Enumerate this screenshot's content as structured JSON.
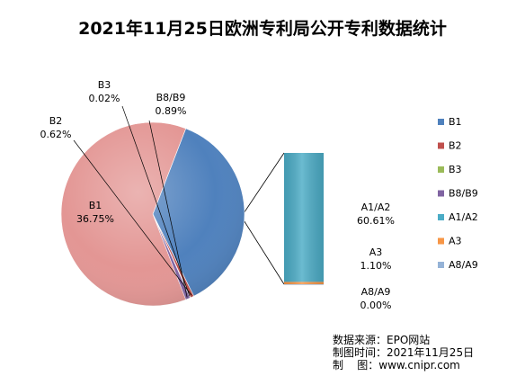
{
  "chart_data": {
    "type": "pie",
    "title": "2021年11月25日欧洲专利局公开专利数据统计",
    "slices": [
      {
        "name": "B1",
        "value": 36.75,
        "value_label": "36.75%",
        "color": "#4F81BD"
      },
      {
        "name": "B2",
        "value": 0.62,
        "value_label": "0.62%",
        "color": "#C0504D"
      },
      {
        "name": "B3",
        "value": 0.02,
        "value_label": "0.02%",
        "color": "#9BBB59"
      },
      {
        "name": "B8/B9",
        "value": 0.89,
        "value_label": "0.89%",
        "color": "#8064A2"
      }
    ],
    "bar_of_pie": [
      {
        "name": "A1/A2",
        "value": 60.61,
        "value_label": "60.61%",
        "color": "#4BACC6"
      },
      {
        "name": "A3",
        "value": 1.1,
        "value_label": "1.10%",
        "color": "#F79646"
      },
      {
        "name": "A8/A9",
        "value": 0.0,
        "value_label": "0.00%",
        "color": "#95B3D7"
      }
    ],
    "other_slice_color": "#E39694",
    "legend": [
      "B1",
      "B2",
      "B3",
      "B8/B9",
      "A1/A2",
      "A3",
      "A8/A9"
    ],
    "legend_placement": "right"
  },
  "source": {
    "line1": "数据来源：EPO网站",
    "line2": "制图时间：2021年11月25日",
    "line3": "制    图：www.cnipr.com"
  }
}
